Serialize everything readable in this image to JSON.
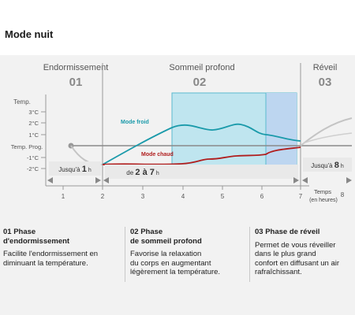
{
  "page": {
    "title": "Mode nuit"
  },
  "phases": [
    {
      "name": "Endormissement",
      "number": "01"
    },
    {
      "name": "Sommeil profond",
      "number": "02"
    },
    {
      "name": "Réveil",
      "number": "03"
    }
  ],
  "y_axis": {
    "label": "Temp.",
    "ticks": [
      "3°C",
      "2°C",
      "1°C",
      "Temp. Prog.",
      "-1°C",
      "-2°C"
    ]
  },
  "x_axis": {
    "ticks": [
      "1",
      "2",
      "3",
      "4",
      "5",
      "6",
      "7",
      "8"
    ],
    "label_line1": "Temps",
    "label_line2": "(en heures)"
  },
  "curves": {
    "cold_label": "Mode froid",
    "hot_label": "Mode chaud",
    "cold_color": "#1a9aaa",
    "hot_color": "#b01e1e"
  },
  "durations": {
    "phase1_prefix": "Jusqu'à ",
    "phase1_value": "1",
    "phase1_unit": " h",
    "phase2_prefix": "de ",
    "phase2_value": "2 à 7",
    "phase2_unit": " h",
    "phase3_prefix": "Jusqu'à ",
    "phase3_value": "8",
    "phase3_unit": " h"
  },
  "descriptions": [
    {
      "heading": "01 Phase\nd'endormissement",
      "body": "Facilite l'endormissement en\ndiminuant la température."
    },
    {
      "heading": "02 Phase\nde sommeil profond",
      "body": "Favorise la relaxation\ndu corps en augmentant\nlégèrement la température."
    },
    {
      "heading": "03 Phase de réveil",
      "body": "Permet de vous réveiller\ndans le plus grand\nconfort en diffusant un air\nrafraîchissant."
    }
  ],
  "colors": {
    "zone_fill": "#bfe5ef",
    "zone_edge": "#5bb9cf",
    "zone_highlight": "#bdd6f0"
  }
}
